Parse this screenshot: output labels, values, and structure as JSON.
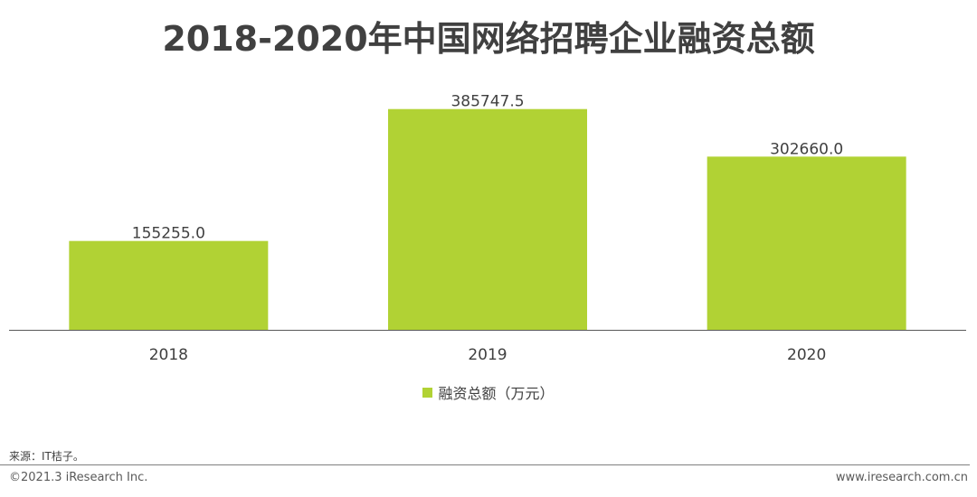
{
  "chart_data": {
    "type": "bar",
    "title": "2018-2020年中国网络招聘企业融资总额",
    "categories": [
      "2018",
      "2019",
      "2020"
    ],
    "series": [
      {
        "name": "融资总额（万元）",
        "values": [
          155255.0,
          385747.5,
          302660.0
        ],
        "labels": [
          "155255.0",
          "385747.5",
          "302660.0"
        ],
        "color": "#b1d234"
      }
    ],
    "xlabel": "",
    "ylabel": "",
    "ylim": [
      0,
      450000
    ],
    "grid": false,
    "legend": "bottom-center"
  },
  "source": "来源：IT桔子。",
  "copyright": "©2021.3 iResearch Inc.",
  "website": "www.iresearch.com.cn",
  "colors": {
    "bar": "#b1d234",
    "axis": "#595959",
    "text": "#404040"
  }
}
